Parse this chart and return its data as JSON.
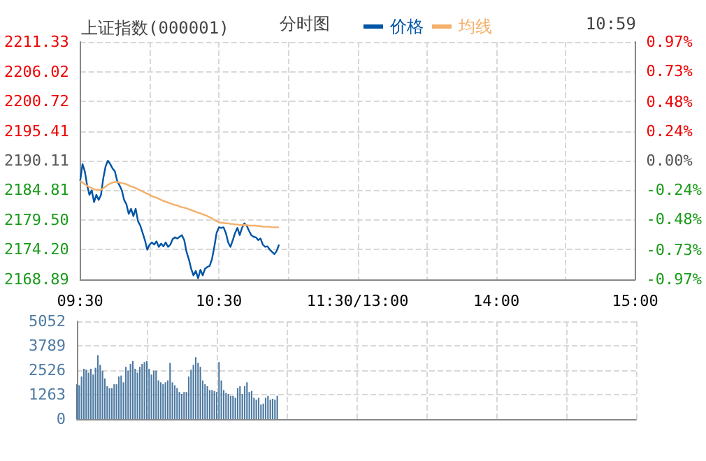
{
  "chart_data": {
    "type": "line",
    "title": "上证指数(000001)",
    "subtitle": "分时图",
    "annotations": [
      "10:59"
    ],
    "legend": "top",
    "grid": true,
    "marker": "none",
    "categories": [
      "09:30",
      null,
      null,
      null,
      null,
      null,
      null,
      null,
      null,
      null,
      null,
      null,
      null,
      null,
      null,
      null,
      null,
      null,
      null,
      null,
      null,
      null,
      null,
      null,
      null,
      null,
      null,
      null,
      null,
      null,
      null,
      null,
      null,
      null,
      null,
      null,
      null,
      null,
      null,
      null,
      null,
      null,
      null,
      null,
      null,
      null,
      null,
      null,
      null,
      null,
      null,
      null,
      null,
      null,
      null,
      null,
      null,
      null,
      null,
      null,
      "10:30",
      null,
      null,
      null,
      null,
      null,
      null,
      null,
      null,
      null,
      null,
      null,
      null,
      null,
      null,
      null,
      null,
      null,
      null,
      null,
      null,
      null,
      null,
      null,
      null,
      null,
      null,
      null,
      null,
      null,
      null,
      null,
      null,
      null,
      null,
      null,
      null,
      null,
      null,
      null,
      null,
      null,
      null,
      null,
      null,
      null,
      null,
      null,
      null,
      null,
      null,
      null,
      null,
      null,
      null,
      null,
      null,
      null,
      null,
      null,
      "11:30/13:00",
      null,
      null,
      null,
      null,
      null,
      null,
      null,
      null,
      null,
      null,
      null,
      null,
      null,
      null,
      null,
      null,
      null,
      null,
      null,
      null,
      null,
      null,
      null,
      null,
      null,
      null,
      null,
      null,
      null,
      null,
      null,
      null,
      null,
      null,
      null,
      null,
      null,
      null,
      null,
      null,
      null,
      null,
      null,
      null,
      null,
      null,
      null,
      null,
      null,
      null,
      null,
      null,
      null,
      null,
      null,
      null,
      null,
      null,
      null,
      "14:00",
      null,
      null,
      null,
      null,
      null,
      null,
      null,
      null,
      null,
      null,
      null,
      null,
      null,
      null,
      null,
      null,
      null,
      null,
      null,
      null,
      null,
      null,
      null,
      null,
      null,
      null,
      null,
      null,
      null,
      null,
      null,
      null,
      null,
      null,
      null,
      null,
      null,
      null,
      null,
      null,
      null,
      null,
      null,
      null,
      null,
      null,
      null,
      null,
      null,
      null,
      null,
      null,
      null,
      null,
      null,
      null,
      null,
      null,
      null,
      "15:00"
    ],
    "ylim": [
      2168.89,
      2211.33
    ],
    "yticks": [
      2168.89,
      {
        "value": 2174.2,
        "label": "2174.20"
      },
      {
        "value": 2179.5,
        "label": "2179.50"
      },
      2184.81,
      2190.11,
      2195.41,
      2200.72,
      2206.02,
      2211.33
    ],
    "y2lim": [
      -0.97,
      0.97
    ],
    "y2ticks": [
      {
        "value": -0.97,
        "label": "-0.97%"
      },
      {
        "value": -0.73,
        "label": "-0.73%"
      },
      {
        "value": -0.48,
        "label": "-0.48%"
      },
      {
        "value": -0.24,
        "label": "-0.24%"
      },
      {
        "value": 0,
        "label": "0.00%"
      },
      {
        "value": 0.24,
        "label": "0.24%"
      },
      {
        "value": 0.48,
        "label": "0.48%"
      },
      {
        "value": 0.73,
        "label": "0.73%"
      },
      {
        "value": 0.97,
        "label": "0.97%"
      }
    ],
    "y3lim": [
      0,
      5052
    ],
    "y3ticks": [
      0,
      1263,
      2526,
      3789,
      5052
    ],
    "series": [
      {
        "name": "价格",
        "color": "#0055a5",
        "values": [
          2186.5,
          2189.5,
          2188.2,
          2185.7,
          2184,
          2184.8,
          2182.7,
          2184,
          2183.1,
          2184,
          2187,
          2189.1,
          2190.1,
          2189.5,
          2188.7,
          2188.2,
          2186.5,
          2185.7,
          2184.8,
          2183.1,
          2182.3,
          2180.6,
          2181.5,
          2180.2,
          2181.5,
          2179.3,
          2178.5,
          2177.2,
          2175.9,
          2174.2,
          2175.1,
          2175.5,
          2175.1,
          2175.7,
          2174.7,
          2175.3,
          2174.8,
          2175.5,
          2174.7,
          2175.1,
          2176.1,
          2176.4,
          2176.2,
          2176.5,
          2176.8,
          2175.9,
          2173.8,
          2172.5,
          2170.8,
          2169.6,
          2170.4,
          2169.1,
          2170.6,
          2169.6,
          2170.8,
          2171.1,
          2171.3,
          2172.5,
          2174.7,
          2177.2,
          2178.2,
          2178.1,
          2178.2,
          2177.2,
          2175.5,
          2174.7,
          2175.9,
          2177.2,
          2178.1,
          2176.8,
          2178.1,
          2178.9,
          2178.5,
          2177.6,
          2176.8,
          2176.5,
          2176.4,
          2175.9,
          2176.2,
          2175.1,
          2174.7,
          2174.8,
          2174.2,
          2173.8,
          2173.4,
          2174,
          2175.1,
          null,
          null,
          null,
          null,
          null,
          null,
          null,
          null,
          null,
          null,
          null,
          null,
          null,
          null,
          null,
          null,
          null,
          null,
          null,
          null,
          null,
          null,
          null,
          null,
          null,
          null,
          null,
          null,
          null,
          null,
          null,
          null,
          null,
          null,
          null,
          null,
          null,
          null,
          null,
          null,
          null,
          null,
          null,
          null,
          null,
          null,
          null,
          null,
          null,
          null,
          null,
          null,
          null,
          null,
          null,
          null,
          null,
          null,
          null,
          null,
          null,
          null,
          null,
          null,
          null,
          null,
          null,
          null,
          null,
          null,
          null,
          null,
          null,
          null,
          null,
          null,
          null,
          null,
          null,
          null,
          null,
          null,
          null,
          null,
          null,
          null,
          null,
          null,
          null,
          null,
          null,
          null,
          null,
          null,
          null,
          null,
          null,
          null,
          null,
          null,
          null,
          null,
          null,
          null,
          null,
          null,
          null,
          null,
          null,
          null,
          null,
          null,
          null,
          null,
          null,
          null,
          null,
          null,
          null,
          null,
          null,
          null,
          null,
          null,
          null,
          null,
          null,
          null,
          null,
          null,
          null,
          null,
          null,
          null,
          null,
          null,
          null,
          null,
          null,
          null,
          null,
          null,
          null,
          null,
          null,
          null,
          null,
          null,
          null,
          null,
          null,
          null,
          null,
          null
        ]
      },
      {
        "name": "均线",
        "color": "#f4b06a",
        "values": [
          2186.5,
          2186.2,
          2185.9,
          2185.6,
          2185.4,
          2185.2,
          2185,
          2184.9,
          2184.9,
          2184.9,
          2185.2,
          2185.5,
          2185.8,
          2186,
          2186.2,
          2186.3,
          2186.3,
          2186.2,
          2186.1,
          2186,
          2185.9,
          2185.7,
          2185.5,
          2185.4,
          2185.2,
          2185,
          2184.8,
          2184.6,
          2184.4,
          2184.2,
          2184,
          2183.8,
          2183.6,
          2183.5,
          2183.3,
          2183.1,
          2182.9,
          2182.8,
          2182.6,
          2182.5,
          2182.3,
          2182.2,
          2182.1,
          2181.9,
          2181.8,
          2181.7,
          2181.6,
          2181.4,
          2181.3,
          2181.1,
          2181,
          2180.8,
          2180.7,
          2180.5,
          2180.4,
          2180.2,
          2180,
          2179.8,
          2179.5,
          2179.3,
          2179.1,
          2179,
          2179,
          2178.9,
          2178.9,
          2178.8,
          2178.8,
          2178.7,
          2178.7,
          2178.6,
          2178.6,
          2178.6,
          2178.6,
          2178.5,
          2178.5,
          2178.5,
          2178.5,
          2178.4,
          2178.4,
          2178.3,
          2178.3,
          2178.3,
          2178.3,
          2178.2,
          2178.2,
          2178.2,
          2178.2,
          null,
          null,
          null,
          null,
          null,
          null,
          null,
          null,
          null,
          null,
          null,
          null,
          null,
          null,
          null,
          null,
          null,
          null,
          null,
          null,
          null,
          null,
          null,
          null,
          null,
          null,
          null,
          null,
          null,
          null,
          null,
          null,
          null,
          null,
          null,
          null,
          null,
          null,
          null,
          null,
          null,
          null,
          null,
          null,
          null,
          null,
          null,
          null,
          null,
          null,
          null,
          null,
          null,
          null,
          null,
          null,
          null,
          null,
          null,
          null,
          null,
          null,
          null,
          null,
          null,
          null,
          null,
          null,
          null,
          null,
          null,
          null,
          null,
          null,
          null,
          null,
          null,
          null,
          null,
          null,
          null,
          null,
          null,
          null,
          null,
          null,
          null,
          null,
          null,
          null,
          null,
          null,
          null,
          null,
          null,
          null,
          null,
          null,
          null,
          null,
          null,
          null,
          null,
          null,
          null,
          null,
          null,
          null,
          null,
          null,
          null,
          null,
          null,
          null,
          null,
          null,
          null,
          null,
          null,
          null,
          null,
          null,
          null,
          null,
          null,
          null,
          null,
          null,
          null,
          null,
          null,
          null,
          null,
          null,
          null,
          null,
          null,
          null,
          null,
          null,
          null,
          null,
          null,
          null,
          null,
          null,
          null,
          null,
          null,
          null,
          null,
          null,
          null,
          null
        ]
      },
      {
        "type": "bar",
        "axis": "y3",
        "color": "#4f7ba3",
        "values": [
          1800,
          1750,
          2200,
          2600,
          2550,
          2400,
          2600,
          2300,
          2650,
          3300,
          2800,
          2500,
          2100,
          1700,
          1600,
          1600,
          1800,
          1800,
          2200,
          2250,
          1900,
          2700,
          2500,
          2850,
          3000,
          2600,
          2400,
          2700,
          2850,
          2950,
          3000,
          2600,
          2300,
          2500,
          2500,
          2000,
          1900,
          1800,
          1900,
          2000,
          2900,
          1900,
          1750,
          1600,
          1400,
          1300,
          1400,
          1400,
          2200,
          2550,
          2800,
          3200,
          2900,
          2700,
          2000,
          1800,
          1700,
          1500,
          1500,
          1450,
          1400,
          2950,
          2000,
          1500,
          1350,
          1300,
          1200,
          1200,
          1100,
          1600,
          1700,
          1300,
          1700,
          1900,
          1400,
          1450,
          1100,
          1000,
          1100,
          750,
          800,
          1100,
          1200,
          1000,
          1050,
          1000,
          1200,
          null,
          null,
          null,
          null,
          null,
          null,
          null,
          null,
          null,
          null,
          null,
          null,
          null,
          null,
          null,
          null,
          null,
          null,
          null,
          null,
          null,
          null,
          null,
          null,
          null,
          null,
          null,
          null,
          null,
          null,
          null,
          null,
          null,
          null,
          null,
          null,
          null,
          null,
          null,
          null,
          null,
          null,
          null,
          null,
          null,
          null,
          null,
          null,
          null,
          null,
          null,
          null,
          null,
          null,
          null,
          null,
          null,
          null,
          null,
          null,
          null,
          null,
          null,
          null,
          null,
          null,
          null,
          null,
          null,
          null,
          null,
          null,
          null,
          null,
          null,
          null,
          null,
          null,
          null,
          null,
          null,
          null,
          null,
          null,
          null,
          null,
          null,
          null,
          null,
          null,
          null,
          null,
          null,
          null,
          null,
          null,
          null,
          null,
          null,
          null,
          null,
          null,
          null,
          null,
          null,
          null,
          null,
          null,
          null,
          null,
          null,
          null,
          null,
          null,
          null,
          null,
          null,
          null,
          null,
          null,
          null,
          null,
          null,
          null,
          null,
          null,
          null,
          null,
          null,
          null,
          null,
          null,
          null,
          null,
          null,
          null,
          null,
          null,
          null,
          null,
          null,
          null,
          null,
          null,
          null,
          null,
          null,
          null,
          null,
          null,
          null,
          null,
          null,
          null
        ]
      }
    ]
  }
}
